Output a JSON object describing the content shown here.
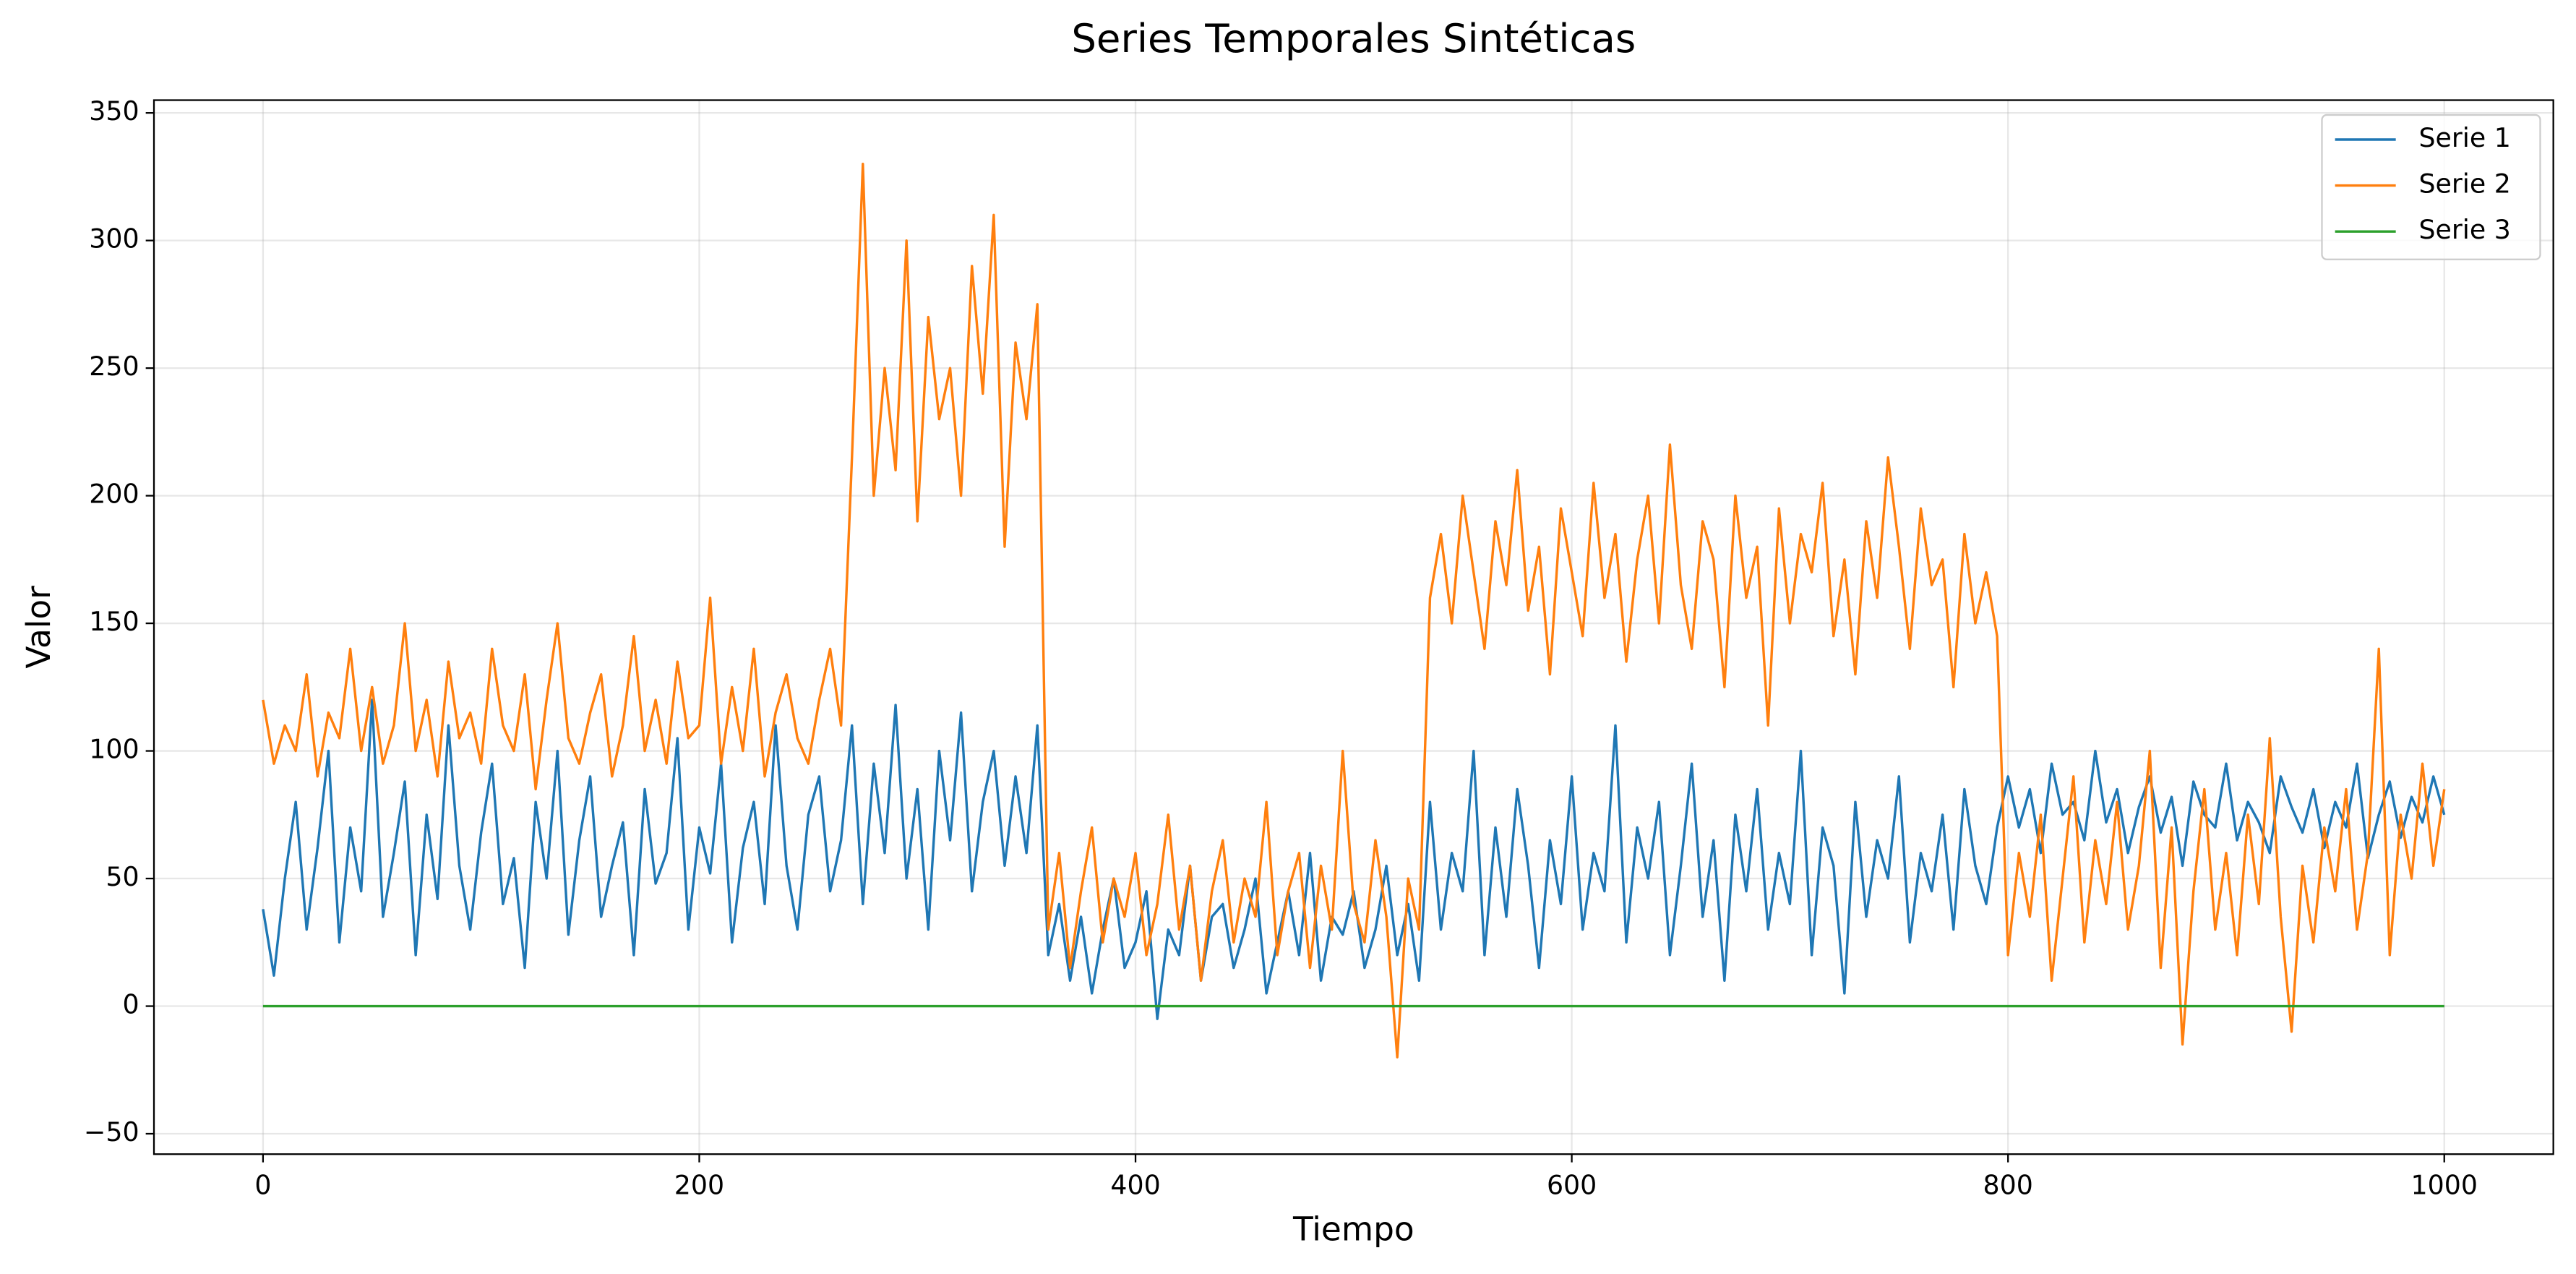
{
  "chart_data": {
    "type": "line",
    "title": "Series Temporales Sintéticas",
    "xlabel": "Tiempo",
    "ylabel": "Valor",
    "x": [
      0,
      5,
      10,
      15,
      20,
      25,
      30,
      35,
      40,
      45,
      50,
      55,
      60,
      65,
      70,
      75,
      80,
      85,
      90,
      95,
      100,
      105,
      110,
      115,
      120,
      125,
      130,
      135,
      140,
      145,
      150,
      155,
      160,
      165,
      170,
      175,
      180,
      185,
      190,
      195,
      200,
      205,
      210,
      215,
      220,
      225,
      230,
      235,
      240,
      245,
      250,
      255,
      260,
      265,
      270,
      275,
      280,
      285,
      290,
      295,
      300,
      305,
      310,
      315,
      320,
      325,
      330,
      335,
      340,
      345,
      350,
      355,
      360,
      365,
      370,
      375,
      380,
      385,
      390,
      395,
      400,
      405,
      410,
      415,
      420,
      425,
      430,
      435,
      440,
      445,
      450,
      455,
      460,
      465,
      470,
      475,
      480,
      485,
      490,
      495,
      500,
      505,
      510,
      515,
      520,
      525,
      530,
      535,
      540,
      545,
      550,
      555,
      560,
      565,
      570,
      575,
      580,
      585,
      590,
      595,
      600,
      605,
      610,
      615,
      620,
      625,
      630,
      635,
      640,
      645,
      650,
      655,
      660,
      665,
      670,
      675,
      680,
      685,
      690,
      695,
      700,
      705,
      710,
      715,
      720,
      725,
      730,
      735,
      740,
      745,
      750,
      755,
      760,
      765,
      770,
      775,
      780,
      785,
      790,
      795,
      800,
      805,
      810,
      815,
      820,
      825,
      830,
      835,
      840,
      845,
      850,
      855,
      860,
      865,
      870,
      875,
      880,
      885,
      890,
      895,
      900,
      905,
      910,
      915,
      920,
      925,
      930,
      935,
      940,
      945,
      950,
      955,
      960,
      965,
      970,
      975,
      980,
      985,
      990,
      995,
      1000
    ],
    "series": [
      {
        "name": "Serie 1",
        "color": "#1f77b4",
        "values": [
          38,
          12,
          50,
          80,
          30,
          62,
          100,
          25,
          70,
          45,
          120,
          35,
          60,
          88,
          20,
          75,
          42,
          110,
          55,
          30,
          68,
          95,
          40,
          58,
          15,
          80,
          50,
          100,
          28,
          65,
          90,
          35,
          55,
          72,
          20,
          85,
          48,
          60,
          105,
          30,
          70,
          52,
          95,
          25,
          62,
          80,
          40,
          110,
          55,
          30,
          75,
          90,
          45,
          65,
          110,
          40,
          95,
          60,
          118,
          50,
          85,
          30,
          100,
          65,
          115,
          45,
          80,
          100,
          55,
          90,
          60,
          110,
          20,
          40,
          10,
          35,
          5,
          30,
          50,
          15,
          25,
          45,
          -5,
          30,
          20,
          55,
          10,
          35,
          40,
          15,
          30,
          50,
          5,
          25,
          45,
          20,
          60,
          10,
          35,
          28,
          45,
          15,
          30,
          55,
          20,
          40,
          10,
          80,
          30,
          60,
          45,
          100,
          20,
          70,
          35,
          85,
          55,
          15,
          65,
          40,
          90,
          30,
          60,
          45,
          110,
          25,
          70,
          50,
          80,
          20,
          55,
          95,
          35,
          65,
          10,
          75,
          45,
          85,
          30,
          60,
          40,
          100,
          20,
          70,
          55,
          5,
          80,
          35,
          65,
          50,
          90,
          25,
          60,
          45,
          75,
          30,
          85,
          55,
          40,
          70,
          90,
          70,
          85,
          60,
          95,
          75,
          80,
          65,
          100,
          72,
          85,
          60,
          78,
          90,
          68,
          82,
          55,
          88,
          75,
          70,
          95,
          65,
          80,
          72,
          60,
          90,
          78,
          68,
          85,
          62,
          80,
          70,
          95,
          58,
          75,
          88,
          66,
          82,
          72,
          90,
          75
        ]
      },
      {
        "name": "Serie 2",
        "color": "#ff7f0e",
        "values": [
          120,
          95,
          110,
          100,
          130,
          90,
          115,
          105,
          140,
          100,
          125,
          95,
          110,
          150,
          100,
          120,
          90,
          135,
          105,
          115,
          95,
          140,
          110,
          100,
          130,
          85,
          120,
          150,
          105,
          95,
          115,
          130,
          90,
          110,
          145,
          100,
          120,
          95,
          135,
          105,
          110,
          160,
          95,
          125,
          100,
          140,
          90,
          115,
          130,
          105,
          95,
          120,
          140,
          110,
          215,
          330,
          200,
          250,
          210,
          300,
          190,
          270,
          230,
          250,
          200,
          290,
          240,
          310,
          180,
          260,
          230,
          275,
          30,
          60,
          15,
          45,
          70,
          25,
          50,
          35,
          60,
          20,
          40,
          75,
          30,
          55,
          10,
          45,
          65,
          25,
          50,
          35,
          80,
          20,
          45,
          60,
          15,
          55,
          30,
          100,
          40,
          25,
          65,
          35,
          -20,
          50,
          30,
          160,
          185,
          150,
          200,
          170,
          140,
          190,
          165,
          210,
          155,
          180,
          130,
          195,
          170,
          145,
          205,
          160,
          185,
          135,
          175,
          200,
          150,
          220,
          165,
          140,
          190,
          175,
          125,
          200,
          160,
          180,
          110,
          195,
          150,
          185,
          170,
          205,
          145,
          175,
          130,
          190,
          160,
          215,
          180,
          140,
          195,
          165,
          175,
          125,
          185,
          150,
          170,
          145,
          20,
          60,
          35,
          75,
          10,
          50,
          90,
          25,
          65,
          40,
          80,
          30,
          55,
          100,
          15,
          70,
          -15,
          45,
          85,
          30,
          60,
          20,
          75,
          40,
          105,
          35,
          -10,
          55,
          25,
          70,
          45,
          85,
          30,
          60,
          140,
          20,
          75,
          50,
          95,
          55,
          85
        ]
      },
      {
        "name": "Serie 3",
        "color": "#2ca02c",
        "values": [
          0,
          0,
          0,
          0,
          0,
          0,
          0,
          0,
          0,
          0,
          0,
          0,
          0,
          0,
          0,
          0,
          0,
          0,
          0,
          0,
          0,
          0,
          0,
          0,
          0,
          0,
          0,
          0,
          0,
          0,
          0,
          0,
          0,
          0,
          0,
          0,
          0,
          0,
          0,
          0,
          0,
          0,
          0,
          0,
          0,
          0,
          0,
          0,
          0,
          0,
          0,
          0,
          0,
          0,
          0,
          0,
          0,
          0,
          0,
          0,
          0,
          0,
          0,
          0,
          0,
          0,
          0,
          0,
          0,
          0,
          0,
          0,
          0,
          0,
          0,
          0,
          0,
          0,
          0,
          0,
          0,
          0,
          0,
          0,
          0,
          0,
          0,
          0,
          0,
          0,
          0,
          0,
          0,
          0,
          0,
          0,
          0,
          0,
          0,
          0,
          0,
          0,
          0,
          0,
          0,
          0,
          0,
          0,
          0,
          0,
          0,
          0,
          0,
          0,
          0,
          0,
          0,
          0,
          0,
          0,
          0,
          0,
          0,
          0,
          0,
          0,
          0,
          0,
          0,
          0,
          0,
          0,
          0,
          0,
          0,
          0,
          0,
          0,
          0,
          0,
          0,
          0,
          0,
          0,
          0,
          0,
          0,
          0,
          0,
          0,
          0,
          0,
          0,
          0,
          0,
          0,
          0,
          0,
          0,
          0,
          0,
          0,
          0,
          0,
          0,
          0,
          0,
          0,
          0,
          0,
          0,
          0,
          0,
          0,
          0,
          0,
          0,
          0,
          0,
          0,
          0,
          0,
          0,
          0,
          0,
          0,
          0,
          0,
          0,
          0,
          0,
          0,
          0,
          0,
          0,
          0,
          0,
          0,
          0,
          0,
          0
        ]
      }
    ],
    "xlim": [
      -50,
      1050
    ],
    "xticks": [
      0,
      200,
      400,
      600,
      800,
      1000
    ],
    "ylim": [
      -58,
      355
    ],
    "yticks": [
      {
        "value": -50,
        "label": "−50"
      },
      0,
      50,
      100,
      150,
      200,
      250,
      300,
      350
    ],
    "grid": true,
    "legend": "upper right"
  }
}
